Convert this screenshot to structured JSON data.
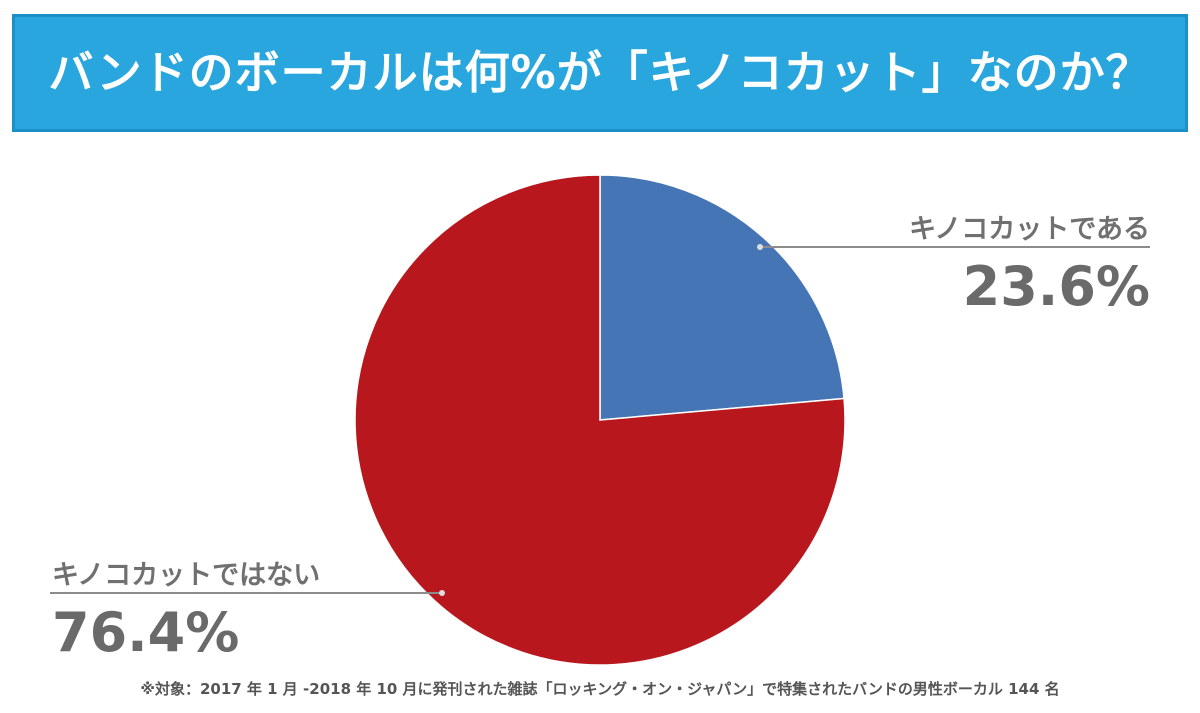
{
  "header": {
    "title": "バンドのボーカルは何%が「キノコカット」なのか？",
    "background_color": "#29a6de"
  },
  "chart_data": {
    "type": "pie",
    "title": "",
    "slices": [
      {
        "label": "キノコカットである",
        "value": 23.6,
        "value_label": "23.6%",
        "color": "#4575b4"
      },
      {
        "label": "キノコカットではない",
        "value": 76.4,
        "value_label": "76.4%",
        "color": "#b8171d"
      }
    ]
  },
  "footnote": "※対象：2017 年 1 月 -2018 年 10 月に発刊された雑誌「ロッキング・オン・ジャパン」で特集されたバンドの男性ボーカル 144 名"
}
